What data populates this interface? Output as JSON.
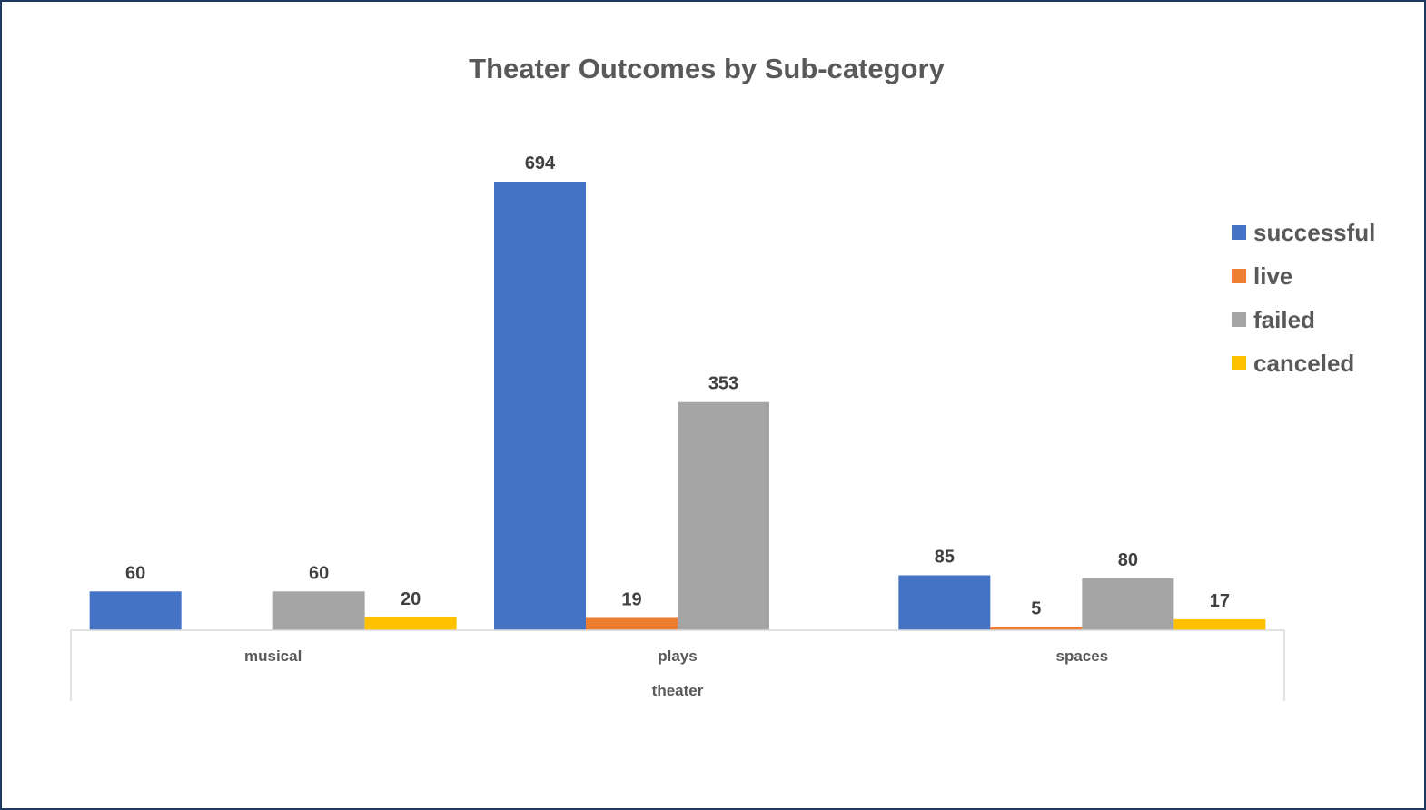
{
  "chart_data": {
    "type": "bar",
    "title": "Theater Outcomes by Sub-category",
    "categories": [
      "musical",
      "plays",
      "spaces"
    ],
    "group_label": "theater",
    "series": [
      {
        "name": "successful",
        "color": "#4472c4",
        "values": [
          60,
          694,
          85
        ]
      },
      {
        "name": "live",
        "color": "#ed7d31",
        "values": [
          null,
          19,
          5
        ]
      },
      {
        "name": "failed",
        "color": "#a5a5a5",
        "values": [
          60,
          353,
          80
        ]
      },
      {
        "name": "canceled",
        "color": "#ffc000",
        "values": [
          20,
          null,
          17
        ]
      }
    ],
    "ylim": [
      0,
      700
    ],
    "grid": false,
    "legend_position": "right",
    "data_labels": true
  }
}
